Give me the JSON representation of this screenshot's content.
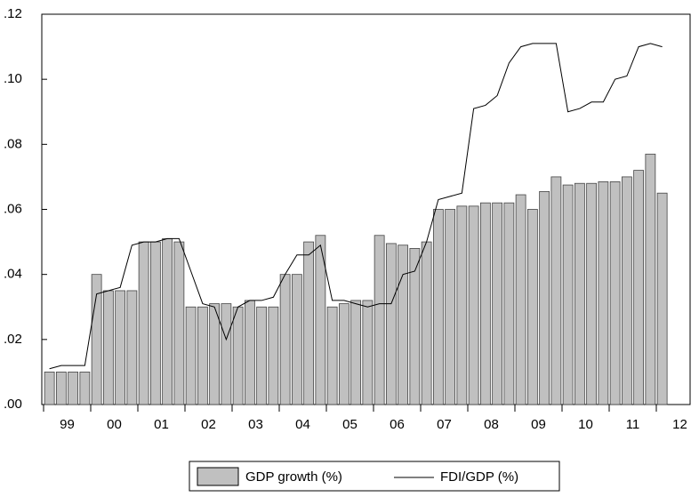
{
  "chart_data": {
    "type": "bar-line",
    "categories": [
      null,
      null,
      "99",
      null,
      null,
      null,
      "00",
      null,
      null,
      null,
      "01",
      null,
      null,
      null,
      "02",
      null,
      null,
      null,
      "03",
      null,
      null,
      null,
      "04",
      null,
      null,
      null,
      "05",
      null,
      null,
      null,
      "06",
      null,
      null,
      null,
      "07",
      null,
      null,
      null,
      "08",
      null,
      null,
      null,
      "09",
      null,
      null,
      null,
      "10",
      null,
      null,
      null,
      "11",
      null,
      null,
      null,
      "12"
    ],
    "series": [
      {
        "name": "GDP growth (%)",
        "type": "bar",
        "color": "#c0c0c0",
        "values": [
          0.01,
          0.01,
          0.01,
          0.01,
          0.04,
          0.035,
          0.035,
          0.035,
          0.05,
          0.05,
          0.051,
          0.05,
          0.03,
          0.03,
          0.031,
          0.031,
          0.03,
          0.032,
          0.03,
          0.03,
          0.04,
          0.04,
          0.05,
          0.052,
          0.03,
          0.031,
          0.032,
          0.032,
          0.052,
          0.0495,
          0.049,
          0.048,
          0.05,
          0.06,
          0.06,
          0.061,
          0.061,
          0.062,
          0.062,
          0.062,
          0.0645,
          0.06,
          0.0655,
          0.07,
          0.0675,
          0.068,
          0.068,
          0.0685,
          0.0685,
          0.07,
          0.072,
          0.077,
          0.065,
          null,
          null
        ]
      },
      {
        "name": "FDI/GDP (%)",
        "type": "line",
        "color": "#000000",
        "values": [
          0.011,
          0.012,
          0.012,
          0.012,
          0.034,
          0.035,
          0.036,
          0.049,
          0.05,
          0.05,
          0.051,
          0.051,
          0.041,
          0.031,
          0.03,
          0.02,
          0.03,
          0.032,
          0.032,
          0.033,
          0.04,
          0.046,
          0.046,
          0.049,
          0.032,
          0.032,
          0.031,
          0.03,
          0.031,
          0.031,
          0.04,
          0.041,
          0.05,
          0.063,
          0.064,
          0.065,
          0.091,
          0.092,
          0.095,
          0.105,
          0.11,
          0.111,
          0.111,
          0.111,
          0.09,
          0.091,
          0.093,
          0.093,
          0.1,
          0.101,
          0.11,
          0.111,
          0.11,
          null,
          null
        ]
      }
    ],
    "ylim": [
      0,
      0.12
    ],
    "yticks": [
      {
        "value": 0,
        "label": ".00"
      },
      {
        "value": 0.02,
        "label": ".02"
      },
      {
        "value": 0.04,
        "label": ".04"
      },
      {
        "value": 0.06,
        "label": ".06"
      },
      {
        "value": 0.08,
        "label": ".08"
      },
      {
        "value": 0.1,
        "label": ".10"
      },
      {
        "value": 0.12,
        "label": ".12"
      }
    ],
    "legend": "bottom"
  }
}
